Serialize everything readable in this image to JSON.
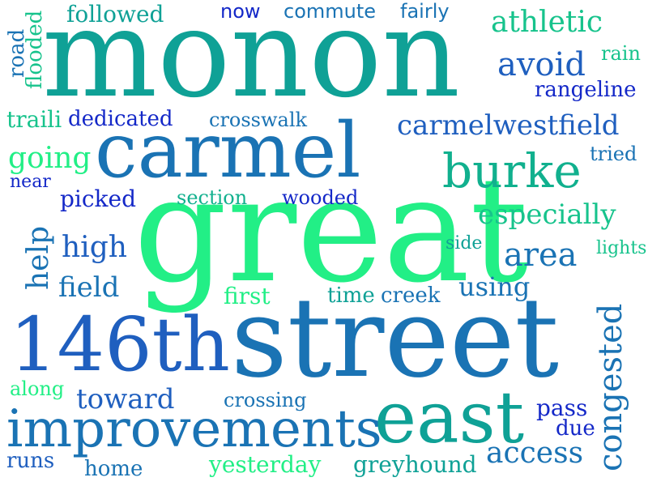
{
  "colors": {
    "background": "#ffffff",
    "navy": "#1428c8",
    "blue": "#1f5fbf",
    "steel": "#1a73b4",
    "teal": "#0fa196",
    "sea": "#11b08e",
    "mint": "#17c38c",
    "green": "#22ef86"
  },
  "words": {
    "monon": "monon",
    "great": "great",
    "street": "street",
    "carmel": "carmel",
    "146th": "146th",
    "east": "east",
    "improvements": "improvements",
    "burke": "burke",
    "carmelwestfield": "carmelwestfield",
    "athletic": "athletic",
    "avoid": "avoid",
    "area": "area",
    "especially": "especially",
    "congested": "congested",
    "access": "access",
    "using": "using",
    "field": "field",
    "high": "high",
    "help": "help",
    "going": "going",
    "toward": "toward",
    "followed": "followed",
    "now": "now",
    "commute": "commute",
    "fairly": "fairly",
    "road": "road",
    "flooded": "flooded",
    "rain": "rain",
    "rangeline": "rangeline",
    "traili": "traili",
    "dedicated": "dedicated",
    "crosswalk": "crosswalk",
    "tried": "tried",
    "near": "near",
    "picked": "picked",
    "section": "section",
    "wooded": "wooded",
    "side": "side",
    "lights": "lights",
    "first": "first",
    "time": "time",
    "creek": "creek",
    "along": "along",
    "crossing": "crossing",
    "pass": "pass",
    "due": "due",
    "runs": "runs",
    "home": "home",
    "yesterday": "yesterday",
    "greyhound": "greyhound"
  }
}
